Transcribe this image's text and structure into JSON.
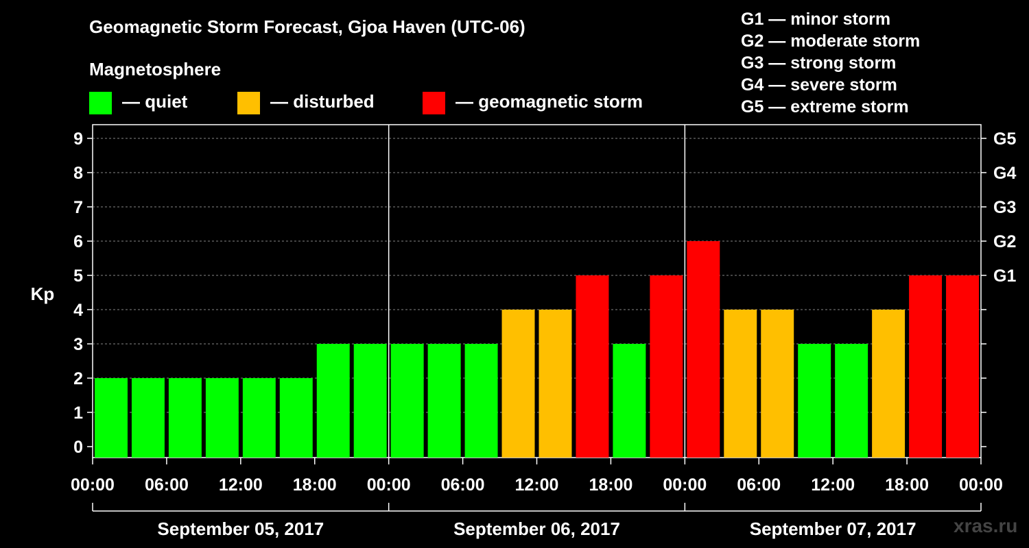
{
  "title": "Geomagnetic Storm Forecast, Gjoa Haven (UTC-06)",
  "magnetosphere_label": "Magnetosphere",
  "legend": [
    {
      "label": "— quiet",
      "color": "#00ff00"
    },
    {
      "label": "— disturbed",
      "color": "#ffbf00"
    },
    {
      "label": "— geomagnetic storm",
      "color": "#ff0000"
    }
  ],
  "g_legend": [
    "G1 — minor storm",
    "G2 — moderate storm",
    "G3 — strong storm",
    "G4 — severe storm",
    "G5 — extreme storm"
  ],
  "watermark": "xras.ru",
  "chart_data": {
    "type": "bar",
    "title": "Geomagnetic Storm Forecast, Gjoa Haven (UTC-06)",
    "ylabel": "Kp",
    "ylim": [
      0,
      9
    ],
    "y_ticks": [
      "0",
      "1",
      "2",
      "3",
      "4",
      "5",
      "6",
      "7",
      "8",
      "9"
    ],
    "right_ticks": [
      {
        "kp": 5,
        "label": "G1"
      },
      {
        "kp": 6,
        "label": "G2"
      },
      {
        "kp": 7,
        "label": "G3"
      },
      {
        "kp": 8,
        "label": "G4"
      },
      {
        "kp": 9,
        "label": "G5"
      }
    ],
    "x_tick_labels": [
      "00:00",
      "06:00",
      "12:00",
      "18:00",
      "00:00",
      "06:00",
      "12:00",
      "18:00",
      "00:00",
      "06:00",
      "12:00",
      "18:00",
      "00:00"
    ],
    "days": [
      "September 05, 2017",
      "September 06, 2017",
      "September 07, 2017"
    ],
    "interval_hours": 3,
    "values": [
      2,
      2,
      2,
      2,
      2,
      2,
      3,
      3,
      3,
      3,
      3,
      4,
      4,
      5,
      3,
      5,
      6,
      4,
      4,
      3,
      3,
      4,
      5,
      5
    ],
    "categories": {
      "quiet": "#00ff00",
      "disturbed": "#ffbf00",
      "storm": "#ff0000"
    }
  }
}
